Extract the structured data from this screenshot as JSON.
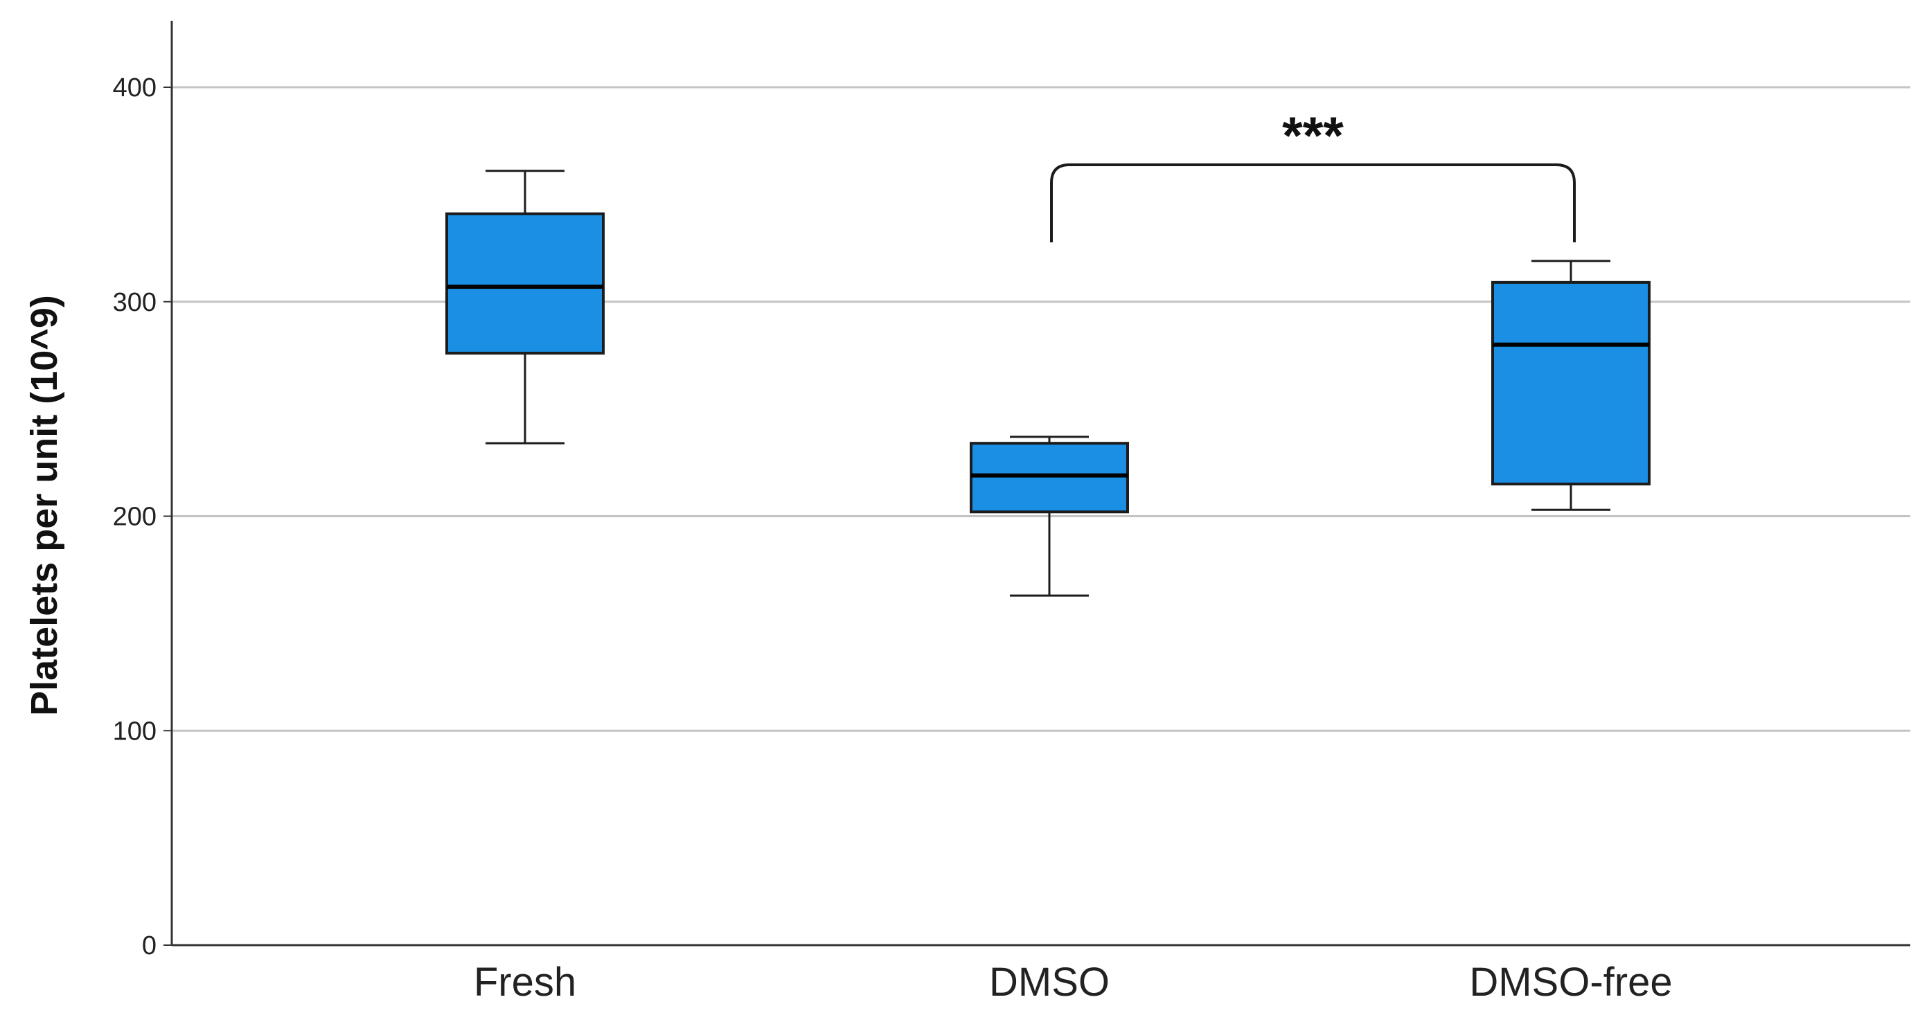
{
  "chart_data": {
    "type": "box",
    "ylabel": "Platelets per unit (10^9)",
    "xlabel": "",
    "ylim": [
      0,
      400
    ],
    "yticks": [
      0,
      100,
      200,
      300,
      400
    ],
    "grid": true,
    "box_color": "#1a8fe3",
    "categories": [
      "Fresh",
      "DMSO",
      "DMSO-free"
    ],
    "boxes": [
      {
        "category": "Fresh",
        "min": 234,
        "q1": 276,
        "median": 307,
        "q3": 341,
        "max": 361
      },
      {
        "category": "DMSO",
        "min": 163,
        "q1": 202,
        "median": 219,
        "q3": 234,
        "max": 237
      },
      {
        "category": "DMSO-free",
        "min": 203,
        "q1": 215,
        "median": 280,
        "q3": 309,
        "max": 319
      }
    ],
    "annotations": [
      {
        "text": "***",
        "from": "DMSO",
        "to": "DMSO-free"
      }
    ]
  }
}
